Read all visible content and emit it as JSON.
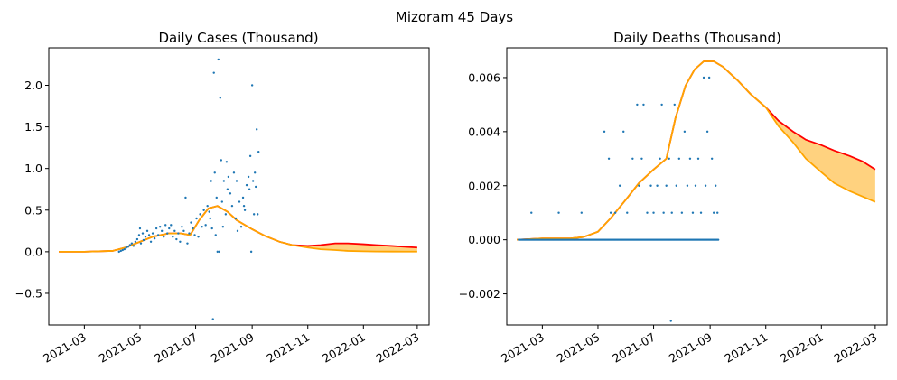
{
  "figure_title": "Mizoram 45 Days",
  "chart_data": [
    {
      "type": "scatter",
      "title": "Daily Cases (Thousand)",
      "xlabel": "",
      "ylabel": "",
      "xlim": [
        "2021-01-21",
        "2022-03-14"
      ],
      "ylim": [
        -0.88,
        2.45
      ],
      "yticks": [
        -0.5,
        0.0,
        0.5,
        1.0,
        1.5,
        2.0
      ],
      "ytick_labels": [
        "−0.5",
        "0.0",
        "0.5",
        "1.0",
        "1.5",
        "2.0"
      ],
      "xticks": [
        "2021-03-01",
        "2021-05-01",
        "2021-07-01",
        "2021-09-01",
        "2021-11-01",
        "2022-01-01",
        "2022-03-01"
      ],
      "xtick_labels": [
        "2021-03",
        "2021-05",
        "2021-07",
        "2021-09",
        "2021-11",
        "2022-01",
        "2022-03"
      ],
      "grid": false,
      "colors": {
        "points": "#1f77b4",
        "upper": "#ff0000",
        "lower": "#ffa500",
        "band": "#ffa500"
      },
      "points": [
        [
          "2021-04-08",
          0.0
        ],
        [
          "2021-04-10",
          0.01
        ],
        [
          "2021-04-12",
          0.02
        ],
        [
          "2021-04-14",
          0.03
        ],
        [
          "2021-04-16",
          0.05
        ],
        [
          "2021-04-18",
          0.06
        ],
        [
          "2021-04-20",
          0.08
        ],
        [
          "2021-04-22",
          0.1
        ],
        [
          "2021-04-24",
          0.07
        ],
        [
          "2021-04-26",
          0.12
        ],
        [
          "2021-04-28",
          0.15
        ],
        [
          "2021-04-30",
          0.2
        ],
        [
          "2021-05-01",
          0.28
        ],
        [
          "2021-05-02",
          0.1
        ],
        [
          "2021-05-04",
          0.22
        ],
        [
          "2021-05-05",
          0.14
        ],
        [
          "2021-05-07",
          0.18
        ],
        [
          "2021-05-09",
          0.25
        ],
        [
          "2021-05-11",
          0.2
        ],
        [
          "2021-05-13",
          0.12
        ],
        [
          "2021-05-15",
          0.22
        ],
        [
          "2021-05-17",
          0.16
        ],
        [
          "2021-05-19",
          0.28
        ],
        [
          "2021-05-21",
          0.2
        ],
        [
          "2021-05-23",
          0.3
        ],
        [
          "2021-05-25",
          0.25
        ],
        [
          "2021-05-27",
          0.18
        ],
        [
          "2021-05-29",
          0.32
        ],
        [
          "2021-05-31",
          0.22
        ],
        [
          "2021-06-02",
          0.28
        ],
        [
          "2021-06-04",
          0.32
        ],
        [
          "2021-06-06",
          0.18
        ],
        [
          "2021-06-08",
          0.25
        ],
        [
          "2021-06-10",
          0.15
        ],
        [
          "2021-06-12",
          0.22
        ],
        [
          "2021-06-14",
          0.12
        ],
        [
          "2021-06-16",
          0.3
        ],
        [
          "2021-06-18",
          0.25
        ],
        [
          "2021-06-20",
          0.65
        ],
        [
          "2021-06-22",
          0.1
        ],
        [
          "2021-06-24",
          0.22
        ],
        [
          "2021-06-26",
          0.35
        ],
        [
          "2021-06-28",
          0.28
        ],
        [
          "2021-06-30",
          0.2
        ],
        [
          "2021-07-02",
          0.4
        ],
        [
          "2021-07-04",
          0.18
        ],
        [
          "2021-07-06",
          0.45
        ],
        [
          "2021-07-08",
          0.3
        ],
        [
          "2021-07-10",
          0.5
        ],
        [
          "2021-07-12",
          0.32
        ],
        [
          "2021-07-14",
          0.55
        ],
        [
          "2021-07-16",
          0.48
        ],
        [
          "2021-07-17",
          0.4
        ],
        [
          "2021-07-18",
          0.85
        ],
        [
          "2021-07-19",
          0.28
        ],
        [
          "2021-07-20",
          -0.81
        ],
        [
          "2021-07-21",
          2.15
        ],
        [
          "2021-07-22",
          0.95
        ],
        [
          "2021-07-23",
          0.2
        ],
        [
          "2021-07-24",
          0.65
        ],
        [
          "2021-07-25",
          0.0
        ],
        [
          "2021-07-26",
          2.31
        ],
        [
          "2021-07-27",
          0.0
        ],
        [
          "2021-07-28",
          1.85
        ],
        [
          "2021-07-29",
          1.1
        ],
        [
          "2021-07-30",
          0.6
        ],
        [
          "2021-07-31",
          0.3
        ],
        [
          "2021-08-01",
          0.85
        ],
        [
          "2021-08-03",
          0.45
        ],
        [
          "2021-08-04",
          1.08
        ],
        [
          "2021-08-05",
          0.75
        ],
        [
          "2021-08-06",
          0.9
        ],
        [
          "2021-08-08",
          0.7
        ],
        [
          "2021-08-10",
          0.55
        ],
        [
          "2021-08-12",
          0.95
        ],
        [
          "2021-08-14",
          0.4
        ],
        [
          "2021-08-15",
          0.85
        ],
        [
          "2021-08-16",
          0.25
        ],
        [
          "2021-08-18",
          0.6
        ],
        [
          "2021-08-20",
          0.3
        ],
        [
          "2021-08-22",
          0.65
        ],
        [
          "2021-08-23",
          0.55
        ],
        [
          "2021-08-24",
          0.5
        ],
        [
          "2021-08-26",
          0.8
        ],
        [
          "2021-08-28",
          0.9
        ],
        [
          "2021-08-29",
          0.75
        ],
        [
          "2021-08-30",
          1.15
        ],
        [
          "2021-08-31",
          0.0
        ],
        [
          "2021-09-01",
          2.0
        ],
        [
          "2021-09-02",
          0.85
        ],
        [
          "2021-09-03",
          0.45
        ],
        [
          "2021-09-04",
          0.95
        ],
        [
          "2021-09-05",
          0.78
        ],
        [
          "2021-09-06",
          1.47
        ],
        [
          "2021-09-07",
          0.45
        ],
        [
          "2021-09-08",
          1.2
        ]
      ],
      "curve_x": [
        "2021-02-01",
        "2021-03-01",
        "2021-04-01",
        "2021-04-15",
        "2021-05-01",
        "2021-05-15",
        "2021-06-01",
        "2021-06-15",
        "2021-06-25",
        "2021-07-05",
        "2021-07-15",
        "2021-07-25",
        "2021-08-05",
        "2021-08-15",
        "2021-09-01",
        "2021-09-15",
        "2021-10-01",
        "2021-10-15",
        "2021-11-01",
        "2021-11-15",
        "2021-12-01",
        "2021-12-15",
        "2022-01-01",
        "2022-01-15",
        "2022-02-01",
        "2022-02-15",
        "2022-03-01"
      ],
      "upper": [
        0.0,
        0.0,
        0.01,
        0.05,
        0.12,
        0.18,
        0.22,
        0.22,
        0.2,
        0.38,
        0.52,
        0.55,
        0.48,
        0.38,
        0.27,
        0.19,
        0.12,
        0.08,
        0.07,
        0.08,
        0.1,
        0.1,
        0.09,
        0.08,
        0.07,
        0.06,
        0.05
      ],
      "lower": [
        0.0,
        0.0,
        0.01,
        0.05,
        0.12,
        0.18,
        0.22,
        0.22,
        0.2,
        0.38,
        0.52,
        0.55,
        0.48,
        0.38,
        0.27,
        0.19,
        0.12,
        0.08,
        0.05,
        0.03,
        0.02,
        0.01,
        0.005,
        0.003,
        0.002,
        0.001,
        0.001
      ]
    },
    {
      "type": "scatter",
      "title": "Daily Deaths (Thousand)",
      "xlabel": "",
      "ylabel": "",
      "xlim": [
        "2021-01-21",
        "2022-03-14"
      ],
      "ylim": [
        -0.00315,
        0.0071
      ],
      "yticks": [
        -0.002,
        0.0,
        0.002,
        0.004,
        0.006
      ],
      "ytick_labels": [
        "−0.002",
        "0.000",
        "0.002",
        "0.004",
        "0.006"
      ],
      "xticks": [
        "2021-03-01",
        "2021-05-01",
        "2021-07-01",
        "2021-09-01",
        "2021-11-01",
        "2022-01-01",
        "2022-03-01"
      ],
      "xtick_labels": [
        "2021-03",
        "2021-05",
        "2021-07",
        "2021-09",
        "2021-11",
        "2022-01",
        "2022-03"
      ],
      "grid": false,
      "colors": {
        "points": "#1f77b4",
        "upper": "#ff0000",
        "lower": "#ffa500",
        "band": "#ffa500"
      },
      "zero_start": "2021-02-03",
      "zero_end": "2021-09-10",
      "points": [
        [
          "2021-02-17",
          0.001
        ],
        [
          "2021-03-19",
          0.001
        ],
        [
          "2021-04-13",
          0.001
        ],
        [
          "2021-05-08",
          0.004
        ],
        [
          "2021-05-13",
          0.003
        ],
        [
          "2021-05-15",
          0.001
        ],
        [
          "2021-05-20",
          0.001
        ],
        [
          "2021-05-25",
          0.002
        ],
        [
          "2021-05-29",
          0.004
        ],
        [
          "2021-06-02",
          0.001
        ],
        [
          "2021-06-08",
          0.003
        ],
        [
          "2021-06-13",
          0.005
        ],
        [
          "2021-06-15",
          0.002
        ],
        [
          "2021-06-18",
          0.003
        ],
        [
          "2021-06-20",
          0.005
        ],
        [
          "2021-06-24",
          0.001
        ],
        [
          "2021-06-28",
          0.002
        ],
        [
          "2021-07-01",
          0.001
        ],
        [
          "2021-07-05",
          0.002
        ],
        [
          "2021-07-08",
          0.003
        ],
        [
          "2021-07-10",
          0.005
        ],
        [
          "2021-07-12",
          0.001
        ],
        [
          "2021-07-15",
          0.002
        ],
        [
          "2021-07-18",
          0.003
        ],
        [
          "2021-07-20",
          -0.003
        ],
        [
          "2021-07-21",
          0.001
        ],
        [
          "2021-07-24",
          0.005
        ],
        [
          "2021-07-26",
          0.002
        ],
        [
          "2021-07-29",
          0.003
        ],
        [
          "2021-08-01",
          0.001
        ],
        [
          "2021-08-04",
          0.004
        ],
        [
          "2021-08-07",
          0.002
        ],
        [
          "2021-08-10",
          0.003
        ],
        [
          "2021-08-13",
          0.001
        ],
        [
          "2021-08-16",
          0.002
        ],
        [
          "2021-08-19",
          0.003
        ],
        [
          "2021-08-22",
          0.001
        ],
        [
          "2021-08-25",
          0.006
        ],
        [
          "2021-08-27",
          0.002
        ],
        [
          "2021-08-29",
          0.004
        ],
        [
          "2021-08-31",
          0.006
        ],
        [
          "2021-09-03",
          0.003
        ],
        [
          "2021-09-05",
          0.001
        ],
        [
          "2021-09-07",
          0.002
        ],
        [
          "2021-09-09",
          0.001
        ]
      ],
      "curve_x": [
        "2021-02-01",
        "2021-03-01",
        "2021-04-01",
        "2021-04-15",
        "2021-05-01",
        "2021-05-15",
        "2021-06-01",
        "2021-06-15",
        "2021-07-01",
        "2021-07-15",
        "2021-07-25",
        "2021-08-05",
        "2021-08-15",
        "2021-08-25",
        "2021-09-05",
        "2021-09-15",
        "2021-10-01",
        "2021-10-15",
        "2021-11-01",
        "2021-11-15",
        "2021-12-01",
        "2021-12-15",
        "2022-01-01",
        "2022-01-15",
        "2022-02-01",
        "2022-02-15",
        "2022-03-01"
      ],
      "upper": [
        0.0,
        5e-05,
        5e-05,
        0.0001,
        0.0003,
        0.0008,
        0.0015,
        0.0021,
        0.0026,
        0.003,
        0.0045,
        0.0057,
        0.0063,
        0.0066,
        0.0066,
        0.0064,
        0.0059,
        0.0054,
        0.0049,
        0.0044,
        0.004,
        0.0037,
        0.0035,
        0.0033,
        0.0031,
        0.0029,
        0.0026
      ],
      "lower": [
        0.0,
        5e-05,
        5e-05,
        0.0001,
        0.0003,
        0.0008,
        0.0015,
        0.0021,
        0.0026,
        0.003,
        0.0045,
        0.0057,
        0.0063,
        0.0066,
        0.0066,
        0.0064,
        0.0059,
        0.0054,
        0.0049,
        0.0042,
        0.0036,
        0.003,
        0.0025,
        0.0021,
        0.0018,
        0.0016,
        0.0014
      ]
    }
  ]
}
